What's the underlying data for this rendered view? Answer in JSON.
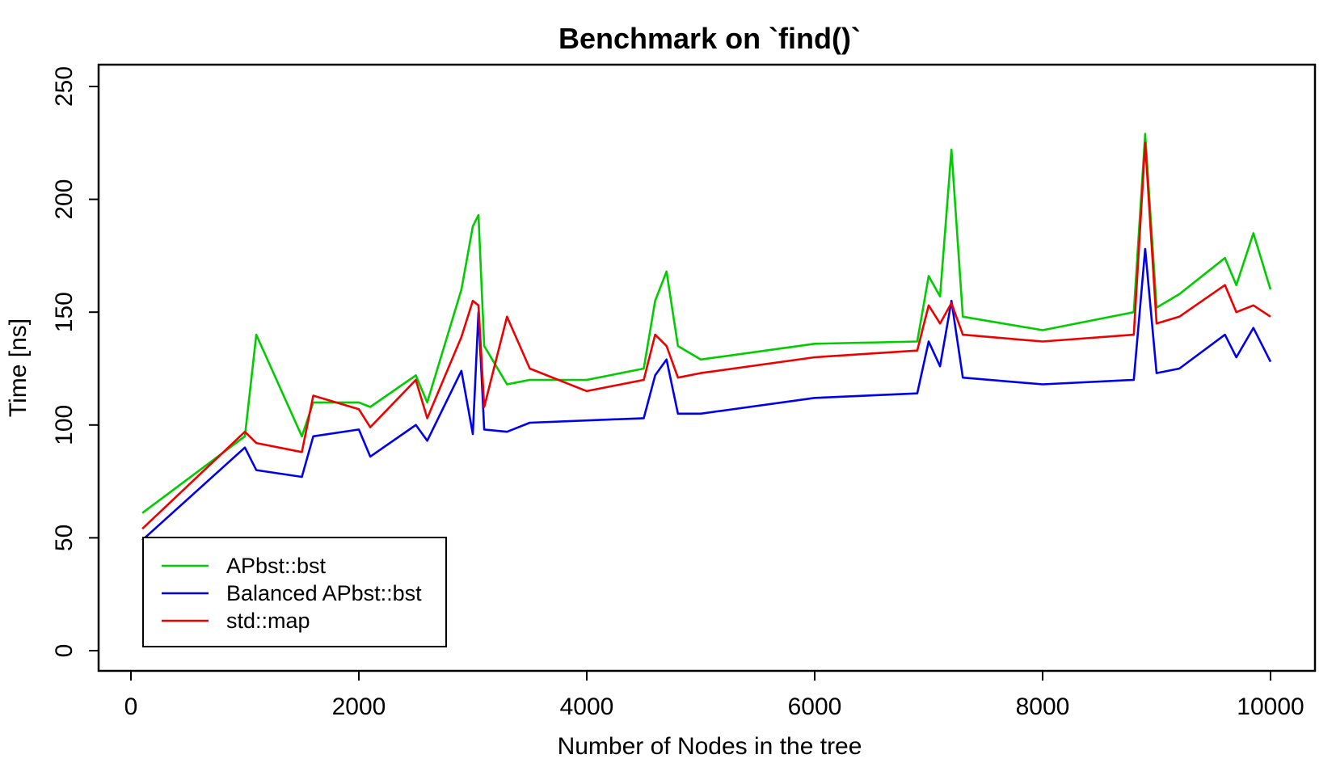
{
  "chart_data": {
    "type": "line",
    "title": "Benchmark on `find()`",
    "xlabel": "Number of Nodes in the tree",
    "ylabel": "Time [ns]",
    "xlim": [
      0,
      10000
    ],
    "ylim": [
      0,
      250
    ],
    "x_ticks": [
      0,
      2000,
      4000,
      6000,
      8000,
      10000
    ],
    "y_ticks": [
      0,
      50,
      100,
      150,
      200,
      250
    ],
    "grid": false,
    "legend_position": "bottom-left",
    "x": [
      100,
      1000,
      1100,
      1500,
      1600,
      2000,
      2100,
      2500,
      2600,
      2900,
      3000,
      3050,
      3100,
      3300,
      3500,
      4000,
      4500,
      4600,
      4700,
      4800,
      5000,
      6000,
      6900,
      7000,
      7100,
      7200,
      7300,
      8000,
      8800,
      8900,
      9000,
      9200,
      9600,
      9700,
      9850,
      10000
    ],
    "series": [
      {
        "name": "APbst::bst",
        "color": "#00cc00",
        "values": [
          61,
          95,
          140,
          95,
          110,
          110,
          108,
          122,
          110,
          160,
          188,
          193,
          135,
          118,
          120,
          120,
          125,
          155,
          168,
          135,
          129,
          136,
          137,
          166,
          157,
          222,
          148,
          142,
          150,
          229,
          152,
          158,
          174,
          162,
          185,
          160
        ]
      },
      {
        "name": "Balanced APbst::bst",
        "color": "#0000ee",
        "values": [
          49,
          90,
          80,
          77,
          95,
          98,
          86,
          100,
          93,
          124,
          96,
          150,
          98,
          97,
          101,
          102,
          103,
          122,
          129,
          105,
          105,
          112,
          114,
          137,
          126,
          155,
          121,
          118,
          120,
          178,
          123,
          125,
          140,
          130,
          143,
          128
        ]
      },
      {
        "name": "std::map",
        "color": "#ee0000",
        "values": [
          54,
          97,
          92,
          88,
          113,
          107,
          99,
          120,
          103,
          139,
          155,
          153,
          108,
          148,
          125,
          115,
          120,
          140,
          135,
          121,
          123,
          130,
          133,
          153,
          145,
          154,
          140,
          137,
          140,
          225,
          145,
          148,
          162,
          150,
          153,
          148
        ]
      }
    ]
  }
}
